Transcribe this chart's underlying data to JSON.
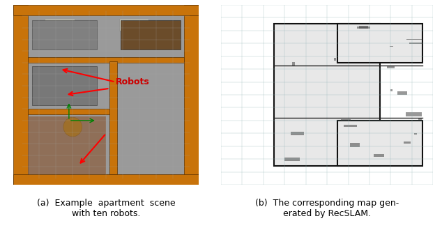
{
  "fig_width": 6.34,
  "fig_height": 3.4,
  "dpi": 100,
  "background_color": "#ffffff",
  "caption_a": "(a)  Example  apartment  scene\nwith ten robots.",
  "caption_b": "(b)  The corresponding map gen-\nerated by RecSLAM.",
  "robots_label": "Robots",
  "robots_label_color": "#cc0000",
  "left_image_bg": "#b0b0b0",
  "right_image_bg": "#7a9e9f",
  "caption_fontsize": 9,
  "caption_color": "#000000"
}
